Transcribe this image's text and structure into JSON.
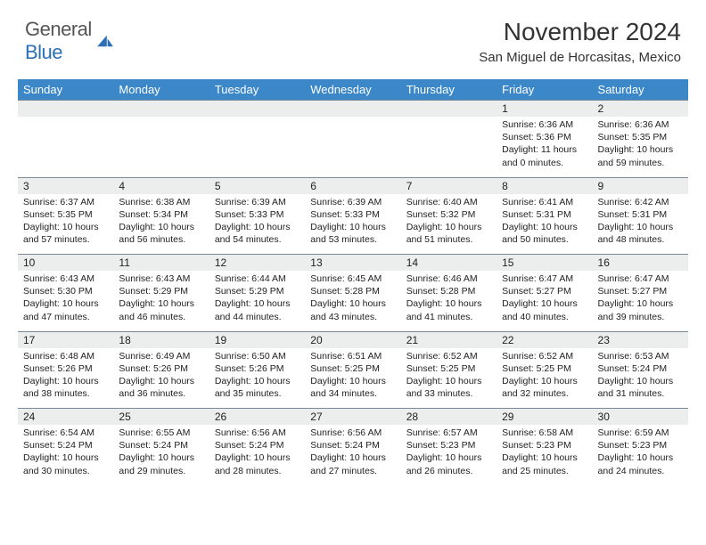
{
  "brand": {
    "word1": "General",
    "word2": "Blue"
  },
  "title": "November 2024",
  "location": "San Miguel de Horcasitas, Mexico",
  "colors": {
    "header_bg": "#3b87c8",
    "daynum_bg": "#eceded",
    "border": "#7a8a99",
    "brand_blue": "#2b6fb5"
  },
  "day_headers": [
    "Sunday",
    "Monday",
    "Tuesday",
    "Wednesday",
    "Thursday",
    "Friday",
    "Saturday"
  ],
  "weeks": [
    [
      null,
      null,
      null,
      null,
      null,
      {
        "n": "1",
        "sr": "6:36 AM",
        "ss": "5:36 PM",
        "dl": "11 hours and 0 minutes."
      },
      {
        "n": "2",
        "sr": "6:36 AM",
        "ss": "5:35 PM",
        "dl": "10 hours and 59 minutes."
      }
    ],
    [
      {
        "n": "3",
        "sr": "6:37 AM",
        "ss": "5:35 PM",
        "dl": "10 hours and 57 minutes."
      },
      {
        "n": "4",
        "sr": "6:38 AM",
        "ss": "5:34 PM",
        "dl": "10 hours and 56 minutes."
      },
      {
        "n": "5",
        "sr": "6:39 AM",
        "ss": "5:33 PM",
        "dl": "10 hours and 54 minutes."
      },
      {
        "n": "6",
        "sr": "6:39 AM",
        "ss": "5:33 PM",
        "dl": "10 hours and 53 minutes."
      },
      {
        "n": "7",
        "sr": "6:40 AM",
        "ss": "5:32 PM",
        "dl": "10 hours and 51 minutes."
      },
      {
        "n": "8",
        "sr": "6:41 AM",
        "ss": "5:31 PM",
        "dl": "10 hours and 50 minutes."
      },
      {
        "n": "9",
        "sr": "6:42 AM",
        "ss": "5:31 PM",
        "dl": "10 hours and 48 minutes."
      }
    ],
    [
      {
        "n": "10",
        "sr": "6:43 AM",
        "ss": "5:30 PM",
        "dl": "10 hours and 47 minutes."
      },
      {
        "n": "11",
        "sr": "6:43 AM",
        "ss": "5:29 PM",
        "dl": "10 hours and 46 minutes."
      },
      {
        "n": "12",
        "sr": "6:44 AM",
        "ss": "5:29 PM",
        "dl": "10 hours and 44 minutes."
      },
      {
        "n": "13",
        "sr": "6:45 AM",
        "ss": "5:28 PM",
        "dl": "10 hours and 43 minutes."
      },
      {
        "n": "14",
        "sr": "6:46 AM",
        "ss": "5:28 PM",
        "dl": "10 hours and 41 minutes."
      },
      {
        "n": "15",
        "sr": "6:47 AM",
        "ss": "5:27 PM",
        "dl": "10 hours and 40 minutes."
      },
      {
        "n": "16",
        "sr": "6:47 AM",
        "ss": "5:27 PM",
        "dl": "10 hours and 39 minutes."
      }
    ],
    [
      {
        "n": "17",
        "sr": "6:48 AM",
        "ss": "5:26 PM",
        "dl": "10 hours and 38 minutes."
      },
      {
        "n": "18",
        "sr": "6:49 AM",
        "ss": "5:26 PM",
        "dl": "10 hours and 36 minutes."
      },
      {
        "n": "19",
        "sr": "6:50 AM",
        "ss": "5:26 PM",
        "dl": "10 hours and 35 minutes."
      },
      {
        "n": "20",
        "sr": "6:51 AM",
        "ss": "5:25 PM",
        "dl": "10 hours and 34 minutes."
      },
      {
        "n": "21",
        "sr": "6:52 AM",
        "ss": "5:25 PM",
        "dl": "10 hours and 33 minutes."
      },
      {
        "n": "22",
        "sr": "6:52 AM",
        "ss": "5:25 PM",
        "dl": "10 hours and 32 minutes."
      },
      {
        "n": "23",
        "sr": "6:53 AM",
        "ss": "5:24 PM",
        "dl": "10 hours and 31 minutes."
      }
    ],
    [
      {
        "n": "24",
        "sr": "6:54 AM",
        "ss": "5:24 PM",
        "dl": "10 hours and 30 minutes."
      },
      {
        "n": "25",
        "sr": "6:55 AM",
        "ss": "5:24 PM",
        "dl": "10 hours and 29 minutes."
      },
      {
        "n": "26",
        "sr": "6:56 AM",
        "ss": "5:24 PM",
        "dl": "10 hours and 28 minutes."
      },
      {
        "n": "27",
        "sr": "6:56 AM",
        "ss": "5:24 PM",
        "dl": "10 hours and 27 minutes."
      },
      {
        "n": "28",
        "sr": "6:57 AM",
        "ss": "5:23 PM",
        "dl": "10 hours and 26 minutes."
      },
      {
        "n": "29",
        "sr": "6:58 AM",
        "ss": "5:23 PM",
        "dl": "10 hours and 25 minutes."
      },
      {
        "n": "30",
        "sr": "6:59 AM",
        "ss": "5:23 PM",
        "dl": "10 hours and 24 minutes."
      }
    ]
  ],
  "labels": {
    "sunrise": "Sunrise: ",
    "sunset": "Sunset: ",
    "daylight": "Daylight: "
  }
}
